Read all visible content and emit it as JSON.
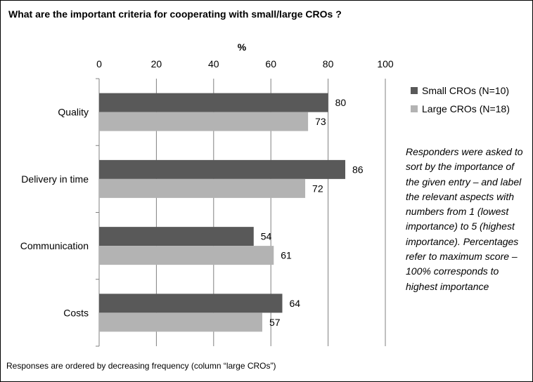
{
  "title": "What are the important criteria for cooperating with small/large CROs ?",
  "note": "Responders were asked to sort by the importance of the given entry – and label the relevant aspects with numbers from 1 (lowest importance) to 5 (highest importance). Percentages refer to maximum score – 100% corresponds to highest importance",
  "footnote": "Responses are ordered by decreasing frequency (column “large CROs”)",
  "chart_data": {
    "type": "bar",
    "orientation": "horizontal",
    "title": "What are the important criteria for cooperating with small/large CROs ?",
    "xlabel": "%",
    "ylabel": "",
    "xlim": [
      0,
      100
    ],
    "ticks": [
      0,
      20,
      40,
      60,
      80,
      100
    ],
    "grid": true,
    "legend": "right",
    "categories": [
      "Quality",
      "Delivery in time",
      "Communication",
      "Costs"
    ],
    "series": [
      {
        "name": "Small CROs (N=10)",
        "color": "#595959",
        "values": [
          80,
          86,
          54,
          64
        ]
      },
      {
        "name": "Large CROs (N=18)",
        "color": "#b3b3b3",
        "values": [
          73,
          72,
          61,
          57
        ]
      }
    ]
  }
}
